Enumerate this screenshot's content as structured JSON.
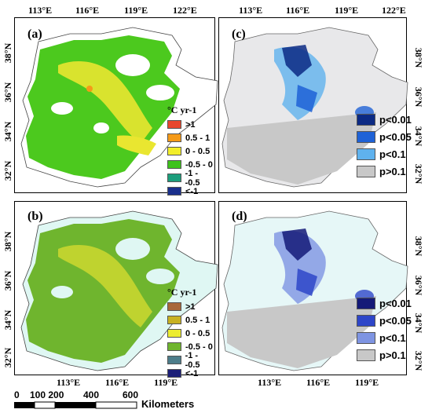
{
  "top_lon_ticks": [
    "113°E",
    "116°E",
    "119°E",
    "122°E"
  ],
  "bottom_lon_ticks": [
    "113°E",
    "116°E",
    "119°E"
  ],
  "lat_ticks_top": [
    "38°N",
    "36°N",
    "34°N",
    "32°N"
  ],
  "lat_ticks_bottom": [
    "38°N",
    "36°N",
    "34°N",
    "32°N"
  ],
  "panels": {
    "a": {
      "label": "(a)"
    },
    "b": {
      "label": "(b)"
    },
    "c": {
      "label": "(c)"
    },
    "d": {
      "label": "(d)"
    }
  },
  "trend_legend_a": {
    "title": "°C yr-1",
    "items": [
      {
        "label": ">1",
        "color": "#e8472d"
      },
      {
        "label": "0.5 - 1",
        "color": "#f59a18"
      },
      {
        "label": "0 - 0.5",
        "color": "#f2ee2a"
      },
      {
        "label": "-0.5 - 0",
        "color": "#3ec21c"
      },
      {
        "label": "-1 - -0.5",
        "color": "#1c9e7c"
      },
      {
        "label": "<-1",
        "color": "#1a2f8c"
      }
    ]
  },
  "trend_legend_b": {
    "title": "°C yr-1",
    "items": [
      {
        "label": ">1",
        "color": "#a8683a"
      },
      {
        "label": "0.5 - 1",
        "color": "#c8b222"
      },
      {
        "label": "0 - 0.5",
        "color": "#ecec30"
      },
      {
        "label": "-0.5 - 0",
        "color": "#6fb52e"
      },
      {
        "label": "-1 - -0.5",
        "color": "#4d7d8a"
      },
      {
        "label": "<-1",
        "color": "#1c1f78"
      }
    ]
  },
  "sig_legend_c": {
    "items": [
      {
        "label": "p<0.01",
        "color": "#0c2a84"
      },
      {
        "label": "p<0.05",
        "color": "#1f62d6"
      },
      {
        "label": "p<0.1",
        "color": "#5fb2ee"
      },
      {
        "label": "p>0.1",
        "color": "#c8c8c8"
      }
    ]
  },
  "sig_legend_d": {
    "items": [
      {
        "label": "p<0.01",
        "color": "#141a78"
      },
      {
        "label": "p<0.05",
        "color": "#2e46c8"
      },
      {
        "label": "p<0.1",
        "color": "#7e94e2"
      },
      {
        "label": "p>0.1",
        "color": "#c8c8c8"
      }
    ]
  },
  "scale_bar": {
    "ticks": [
      "0",
      "100 200",
      "400",
      "600"
    ],
    "unit": "Kilometers"
  }
}
